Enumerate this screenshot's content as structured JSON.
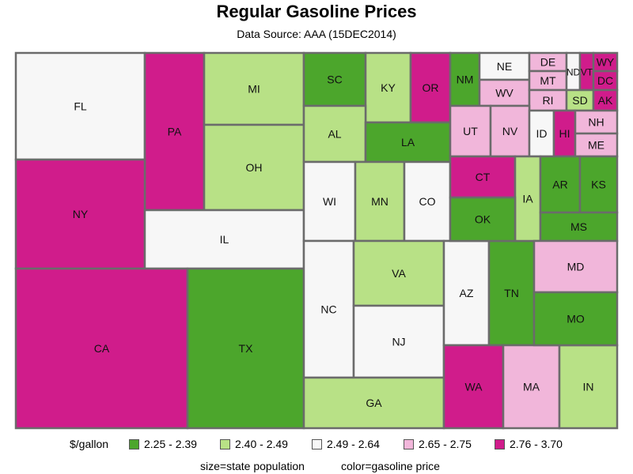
{
  "chart_data": {
    "type": "treemap",
    "title": "Regular Gasoline Prices",
    "subtitle": "Data Source: AAA (15DEC2014)",
    "size_variable": "state population",
    "color_variable": "gasoline price",
    "legend": {
      "title": "$/gallon",
      "placement": "bottom",
      "bins": [
        {
          "label": "2.25 - 2.39",
          "color": "#4ca62c"
        },
        {
          "label": "2.40 - 2.49",
          "color": "#b8e186"
        },
        {
          "label": "2.49 - 2.64",
          "color": "#f7f7f7"
        },
        {
          "label": "2.65 - 2.75",
          "color": "#f1b6da"
        },
        {
          "label": "2.76 - 3.70",
          "color": "#d01c8b"
        }
      ]
    },
    "states": [
      {
        "label": "FL",
        "bin": 2
      },
      {
        "label": "PA",
        "bin": 4
      },
      {
        "label": "MI",
        "bin": 1
      },
      {
        "label": "OH",
        "bin": 1
      },
      {
        "label": "NY",
        "bin": 4
      },
      {
        "label": "IL",
        "bin": 2
      },
      {
        "label": "CA",
        "bin": 4
      },
      {
        "label": "TX",
        "bin": 0
      },
      {
        "label": "SC",
        "bin": 0
      },
      {
        "label": "KY",
        "bin": 1
      },
      {
        "label": "OR",
        "bin": 4
      },
      {
        "label": "AL",
        "bin": 1
      },
      {
        "label": "LA",
        "bin": 0
      },
      {
        "label": "WI",
        "bin": 2
      },
      {
        "label": "MN",
        "bin": 1
      },
      {
        "label": "CO",
        "bin": 2
      },
      {
        "label": "NC",
        "bin": 2
      },
      {
        "label": "VA",
        "bin": 1
      },
      {
        "label": "NJ",
        "bin": 2
      },
      {
        "label": "GA",
        "bin": 1
      },
      {
        "label": "AZ",
        "bin": 2
      },
      {
        "label": "TN",
        "bin": 0
      },
      {
        "label": "WA",
        "bin": 4
      },
      {
        "label": "MA",
        "bin": 3
      },
      {
        "label": "IN",
        "bin": 1
      },
      {
        "label": "NM",
        "bin": 0
      },
      {
        "label": "NE",
        "bin": 2
      },
      {
        "label": "WV",
        "bin": 3
      },
      {
        "label": "DE",
        "bin": 3
      },
      {
        "label": "MT",
        "bin": 3
      },
      {
        "label": "RI",
        "bin": 3
      },
      {
        "label": "ND",
        "bin": 2
      },
      {
        "label": "VT",
        "bin": 4
      },
      {
        "label": "WY",
        "bin": 4
      },
      {
        "label": "DC",
        "bin": 4
      },
      {
        "label": "SD",
        "bin": 1
      },
      {
        "label": "AK",
        "bin": 4
      },
      {
        "label": "UT",
        "bin": 3
      },
      {
        "label": "NV",
        "bin": 3
      },
      {
        "label": "ID",
        "bin": 2
      },
      {
        "label": "HI",
        "bin": 4
      },
      {
        "label": "NH",
        "bin": 3
      },
      {
        "label": "ME",
        "bin": 3
      },
      {
        "label": "CT",
        "bin": 4
      },
      {
        "label": "IA",
        "bin": 1
      },
      {
        "label": "AR",
        "bin": 0
      },
      {
        "label": "KS",
        "bin": 0
      },
      {
        "label": "OK",
        "bin": 0
      },
      {
        "label": "MS",
        "bin": 0
      },
      {
        "label": "MD",
        "bin": 3
      },
      {
        "label": "MO",
        "bin": 0
      }
    ]
  },
  "footer": {
    "size_note": "size=state population",
    "color_note": "color=gasoline price"
  }
}
